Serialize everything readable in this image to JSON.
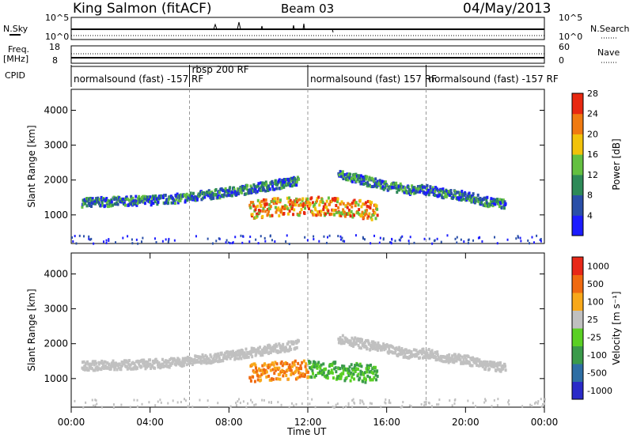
{
  "header": {
    "title": "King Salmon (fitACF)",
    "beam": "Beam 03",
    "date": "04/May/2013"
  },
  "top_panels": {
    "nsky_label": "N.Sky",
    "nsky_ticks": [
      "10^5",
      "10^0"
    ],
    "nsearch_label": "N.Search",
    "nsearch_ticks": [
      "10^5",
      "10^0"
    ],
    "freq_label": "Freq.",
    "freq_unit": "[MHz]",
    "freq_ticks": [
      "18",
      "8"
    ],
    "nave_label": "Nave",
    "nave_ticks": [
      "60",
      "0"
    ],
    "cpid_label": "CPID",
    "cpid_segments": [
      {
        "label": "normalsound (fast) -157 RF",
        "start": 0,
        "end": 6
      },
      {
        "label": "rbsp 200 RF",
        "start": 6,
        "end": 12
      },
      {
        "label": "normalsound (fast) 157 RF",
        "start": 12,
        "end": 18
      },
      {
        "label": "normalsound (fast) -157 RF",
        "start": 18,
        "end": 24
      }
    ]
  },
  "chart_data": [
    {
      "type": "heatmap",
      "title": "Power",
      "ylabel": "Slant Range [km]",
      "xlabel": "Time UT",
      "xlim": [
        0,
        24
      ],
      "ylim": [
        180,
        4600
      ],
      "x_ticks": [
        "00:00",
        "04:00",
        "08:00",
        "12:00",
        "16:00",
        "20:00",
        "00:00"
      ],
      "y_ticks": [
        1000,
        2000,
        3000,
        4000
      ],
      "colorbar": {
        "label": "Power [dB]",
        "ticks": [
          4,
          8,
          12,
          16,
          20,
          24,
          28
        ],
        "colors": [
          "#1c1cff",
          "#2a4fa8",
          "#2e8a58",
          "#64c040",
          "#f2c20a",
          "#f07a10",
          "#e82810"
        ]
      },
      "series": [
        {
          "x": [
            0.5,
            2,
            4,
            5.5,
            7,
            8.5,
            10,
            11.5
          ],
          "y": [
            1400,
            1420,
            1460,
            1520,
            1620,
            1740,
            1880,
            2020
          ]
        },
        {
          "x": [
            9,
            10,
            11,
            12,
            13,
            14,
            15,
            15.5
          ],
          "y": [
            1200,
            1250,
            1280,
            1300,
            1280,
            1240,
            1180,
            1150
          ]
        },
        {
          "x": [
            13.5,
            15,
            16,
            17,
            18,
            19,
            20,
            21,
            22
          ],
          "y": [
            2200,
            2000,
            1880,
            1760,
            1760,
            1640,
            1580,
            1420,
            1350
          ]
        }
      ]
    },
    {
      "type": "heatmap",
      "title": "Velocity",
      "ylabel": "Slant Range [km]",
      "xlabel": "Time UT",
      "xlim": [
        0,
        24
      ],
      "ylim": [
        180,
        4600
      ],
      "x_ticks": [
        "00:00",
        "04:00",
        "08:00",
        "12:00",
        "16:00",
        "20:00",
        "00:00"
      ],
      "y_ticks": [
        1000,
        2000,
        3000,
        4000
      ],
      "colorbar": {
        "label": "Velocity [m s⁻¹]",
        "ticks": [
          "1000",
          "500",
          "100",
          "25",
          "-25",
          "-100",
          "-500",
          "-1000"
        ],
        "colors": [
          "#2a2ac8",
          "#2e6ea4",
          "#3a9a4a",
          "#5ad024",
          "#c0c0c0",
          "#f8a81a",
          "#f06a10",
          "#e82818"
        ]
      },
      "series": [
        {
          "x": [
            0.5,
            2,
            4,
            5.5,
            7,
            8.5,
            10,
            11.5
          ],
          "y": [
            1400,
            1420,
            1460,
            1520,
            1620,
            1740,
            1880,
            2020
          ]
        },
        {
          "x": [
            9,
            10,
            11,
            12,
            13,
            14,
            15,
            15.5
          ],
          "y": [
            1200,
            1250,
            1280,
            1300,
            1280,
            1240,
            1180,
            1150
          ]
        },
        {
          "x": [
            13.5,
            15,
            16,
            17,
            18,
            19,
            20,
            21,
            22
          ],
          "y": [
            2200,
            2000,
            1880,
            1760,
            1760,
            1640,
            1580,
            1420,
            1350
          ]
        }
      ]
    }
  ]
}
